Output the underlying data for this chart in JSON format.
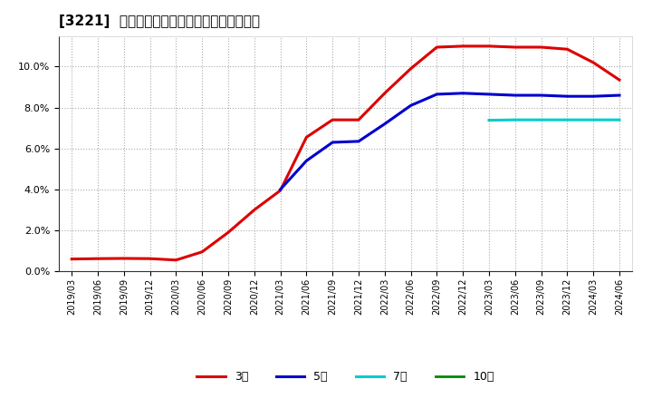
{
  "title": "[3221]  当期純利益マージンの標準偏差の推移",
  "ylim": [
    0.0,
    0.115
  ],
  "yticks": [
    0.0,
    0.02,
    0.04,
    0.06,
    0.08,
    0.1
  ],
  "plot_bg_color": "#ffffff",
  "fig_bg_color": "#ffffff",
  "grid_color": "#aaaaaa",
  "series": {
    "3year": {
      "color": "#dd0000",
      "label": "3年",
      "points": [
        [
          "2019/03",
          0.006
        ],
        [
          "2019/06",
          0.0062
        ],
        [
          "2019/09",
          0.0063
        ],
        [
          "2019/12",
          0.0062
        ],
        [
          "2020/03",
          0.0055
        ],
        [
          "2020/06",
          0.0095
        ],
        [
          "2020/09",
          0.019
        ],
        [
          "2020/12",
          0.03
        ],
        [
          "2021/03",
          0.0395
        ],
        [
          "2021/06",
          0.0655
        ],
        [
          "2021/09",
          0.074
        ],
        [
          "2021/12",
          0.074
        ],
        [
          "2022/03",
          0.087
        ],
        [
          "2022/06",
          0.099
        ],
        [
          "2022/09",
          0.1095
        ],
        [
          "2022/12",
          0.11
        ],
        [
          "2023/03",
          0.11
        ],
        [
          "2023/06",
          0.1095
        ],
        [
          "2023/09",
          0.1095
        ],
        [
          "2023/12",
          0.1085
        ],
        [
          "2024/03",
          0.102
        ],
        [
          "2024/06",
          0.0935
        ]
      ]
    },
    "5year": {
      "color": "#0000cc",
      "label": "5年",
      "points": [
        [
          "2021/03",
          0.04
        ],
        [
          "2021/06",
          0.054
        ],
        [
          "2021/09",
          0.063
        ],
        [
          "2021/12",
          0.0635
        ],
        [
          "2022/03",
          0.072
        ],
        [
          "2022/06",
          0.081
        ],
        [
          "2022/09",
          0.0865
        ],
        [
          "2022/12",
          0.087
        ],
        [
          "2023/03",
          0.0865
        ],
        [
          "2023/06",
          0.086
        ],
        [
          "2023/09",
          0.086
        ],
        [
          "2023/12",
          0.0855
        ],
        [
          "2024/03",
          0.0855
        ],
        [
          "2024/06",
          0.086
        ]
      ]
    },
    "7year": {
      "color": "#00cccc",
      "label": "7年",
      "points": [
        [
          "2023/03",
          0.0738
        ],
        [
          "2023/06",
          0.074
        ],
        [
          "2023/09",
          0.074
        ],
        [
          "2023/12",
          0.074
        ],
        [
          "2024/03",
          0.074
        ],
        [
          "2024/06",
          0.074
        ]
      ]
    },
    "10year": {
      "color": "#008800",
      "label": "10年",
      "points": []
    }
  },
  "xtick_labels": [
    "2019/03",
    "2019/06",
    "2019/09",
    "2019/12",
    "2020/03",
    "2020/06",
    "2020/09",
    "2020/12",
    "2021/03",
    "2021/06",
    "2021/09",
    "2021/12",
    "2022/03",
    "2022/06",
    "2022/09",
    "2022/12",
    "2023/03",
    "2023/06",
    "2023/09",
    "2023/12",
    "2024/03",
    "2024/06"
  ]
}
